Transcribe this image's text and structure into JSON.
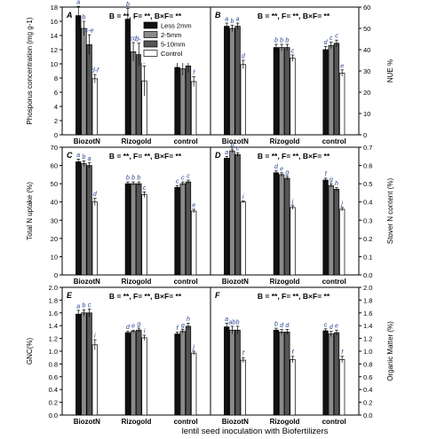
{
  "figure": {
    "shared_xlabel": "lentil seed inoculation with Biofertilizers",
    "groups": [
      "BiozotN",
      "Rizogold",
      "control"
    ],
    "legend": [
      "Less 2mm",
      "2-5mm",
      "5-10mm",
      "Control"
    ],
    "colors": {
      "series": [
        "#111111",
        "#8a8a8a",
        "#555555",
        "#ffffff"
      ],
      "axis": "#000000"
    }
  },
  "chart_data": [
    {
      "panel": "A",
      "type": "bar",
      "ylabel": "Phosporus concentration (mg g-1)",
      "categories": [
        "BiozotN",
        "Rizogold",
        "control"
      ],
      "ylim": [
        0,
        18
      ],
      "yticks": [
        0,
        2,
        4,
        6,
        8,
        10,
        12,
        14,
        16,
        18
      ],
      "series": [
        {
          "name": "Less 2mm",
          "values": [
            16.8,
            16.3,
            9.5
          ],
          "errors": [
            1.3,
            1.5,
            0.8
          ],
          "letters": [
            "a",
            "b",
            "b"
          ]
        },
        {
          "name": "2-5mm",
          "values": [
            15.0,
            11.7,
            9.3
          ],
          "errors": [
            1.0,
            1.3,
            0.9
          ],
          "letters": [
            "b",
            "cd",
            "c-f"
          ]
        },
        {
          "name": "5-10mm",
          "values": [
            12.7,
            11.3,
            9.7
          ],
          "errors": [
            1.4,
            1.6,
            0.9
          ],
          "letters": [
            "c-e",
            "d-f",
            "c-f"
          ]
        },
        {
          "name": "Control",
          "values": [
            7.9,
            7.6,
            7.5
          ],
          "errors": [
            0.6,
            2.1,
            0.7
          ],
          "letters": [
            "d-f",
            "f",
            "f"
          ]
        }
      ],
      "annotation": "B = **, F= **, B×F= **"
    },
    {
      "panel": "B",
      "type": "bar",
      "ylabel": "NUE %",
      "categories": [
        "BiozotN",
        "Rizogold",
        "control"
      ],
      "ylim": [
        0,
        60
      ],
      "yticks": [
        0,
        10,
        20,
        30,
        40,
        50,
        60
      ],
      "series": [
        {
          "name": "Less 2mm",
          "values": [
            51,
            41,
            40
          ],
          "errors": [
            1.5,
            1.5,
            1.5
          ],
          "letters": [
            "a",
            "b",
            "d"
          ]
        },
        {
          "name": "2-5mm",
          "values": [
            50,
            41,
            42
          ],
          "errors": [
            1.5,
            1.5,
            1.5
          ],
          "letters": [
            "b",
            "b",
            "c"
          ]
        },
        {
          "name": "5-10mm",
          "values": [
            51,
            41,
            43
          ],
          "errors": [
            1.5,
            1.5,
            1.5
          ],
          "letters": [
            "a",
            "b",
            "c"
          ]
        },
        {
          "name": "Control",
          "values": [
            33,
            36,
            29
          ],
          "errors": [
            2,
            1.5,
            1.5
          ],
          "letters": [
            "d",
            "c",
            "e"
          ]
        }
      ],
      "annotation": "B = **, F= **, B×F= **"
    },
    {
      "panel": "C",
      "type": "bar",
      "ylabel": "Total N uptake (%)",
      "categories": [
        "BiozotN",
        "Rizogold",
        "control"
      ],
      "ylim": [
        0,
        70
      ],
      "yticks": [
        0,
        10,
        20,
        30,
        40,
        50,
        60,
        70
      ],
      "series": [
        {
          "name": "Less 2mm",
          "values": [
            62,
            50,
            48
          ],
          "errors": [
            1.5,
            1,
            1
          ],
          "letters": [
            "a",
            "b",
            "c"
          ]
        },
        {
          "name": "2-5mm",
          "values": [
            61,
            50,
            50
          ],
          "errors": [
            1.5,
            1,
            1
          ],
          "letters": [
            "b",
            "b",
            "c"
          ]
        },
        {
          "name": "5-10mm",
          "values": [
            60,
            50,
            51
          ],
          "errors": [
            1.5,
            1,
            1
          ],
          "letters": [
            "a",
            "b",
            "c"
          ]
        },
        {
          "name": "Control",
          "values": [
            40,
            44,
            35
          ],
          "errors": [
            2,
            1.5,
            1
          ],
          "letters": [
            "d",
            "c",
            "e"
          ]
        }
      ],
      "annotation": "B = **, F= **, B×F= **"
    },
    {
      "panel": "D",
      "type": "bar",
      "ylabel": "Stover N content (%)",
      "categories": [
        "BiozotN",
        "Rizogold",
        "control"
      ],
      "ylim": [
        0,
        0.7
      ],
      "yticks": [
        0,
        0.1,
        0.2,
        0.3,
        0.4,
        0.5,
        0.6,
        0.7
      ],
      "series": [
        {
          "name": "Less 2mm",
          "values": [
            0.64,
            0.56,
            0.52
          ],
          "errors": [
            0.01,
            0.01,
            0.01
          ],
          "letters": [
            "a",
            "d",
            "f"
          ]
        },
        {
          "name": "2-5mm",
          "values": [
            0.68,
            0.55,
            0.49
          ],
          "errors": [
            0.01,
            0.01,
            0.01
          ],
          "letters": [
            "b",
            "e",
            "g"
          ]
        },
        {
          "name": "5-10mm",
          "values": [
            0.66,
            0.53,
            0.47
          ],
          "errors": [
            0.01,
            0.01,
            0.01
          ],
          "letters": [
            "c",
            "g",
            "h"
          ]
        },
        {
          "name": "Control",
          "values": [
            0.4,
            0.37,
            0.36
          ],
          "errors": [
            0.005,
            0.01,
            0.01
          ],
          "letters": [
            "i",
            "j",
            "j"
          ]
        }
      ],
      "annotation": "B = **, F= **, B×F= **"
    },
    {
      "panel": "E",
      "type": "bar",
      "ylabel": "GNC(%)",
      "categories": [
        "BiozotN",
        "Rizogold",
        "control"
      ],
      "ylim": [
        0,
        2.0
      ],
      "yticks": [
        0,
        0.2,
        0.4,
        0.6,
        0.8,
        1.0,
        1.2,
        1.4,
        1.6,
        1.8,
        2.0
      ],
      "series": [
        {
          "name": "Less 2mm",
          "values": [
            1.58,
            1.29,
            1.27
          ],
          "errors": [
            0.06,
            0.02,
            0.03
          ],
          "letters": [
            "a",
            "d",
            "f"
          ]
        },
        {
          "name": "2-5mm",
          "values": [
            1.6,
            1.31,
            1.31
          ],
          "errors": [
            0.05,
            0.02,
            0.03
          ],
          "letters": [
            "b",
            "e",
            "g"
          ]
        },
        {
          "name": "5-10mm",
          "values": [
            1.6,
            1.33,
            1.39
          ],
          "errors": [
            0.06,
            0.03,
            0.05
          ],
          "letters": [
            "c",
            "g",
            "h"
          ]
        },
        {
          "name": "Control",
          "values": [
            1.1,
            1.21,
            0.97
          ],
          "errors": [
            0.08,
            0.04,
            0.03
          ],
          "letters": [
            "i",
            "i",
            "j"
          ]
        }
      ],
      "annotation": "B = **, F= **, B×F= **"
    },
    {
      "panel": "F",
      "type": "bar",
      "ylabel": "Organic Matter (%)",
      "categories": [
        "BiozotN",
        "Rizogold",
        "control"
      ],
      "ylim": [
        0,
        2.0
      ],
      "yticks": [
        0,
        0.2,
        0.4,
        0.6,
        0.8,
        1.0,
        1.2,
        1.4,
        1.6,
        1.8,
        2.0
      ],
      "series": [
        {
          "name": "Less 2mm",
          "values": [
            1.38,
            1.33,
            1.32
          ],
          "errors": [
            0.06,
            0.03,
            0.03
          ],
          "letters": [
            "a",
            "b",
            "c"
          ]
        },
        {
          "name": "2-5mm",
          "values": [
            1.33,
            1.3,
            1.27
          ],
          "errors": [
            0.06,
            0.04,
            0.04
          ],
          "letters": [
            "ab",
            "d",
            "d"
          ]
        },
        {
          "name": "5-10mm",
          "values": [
            1.33,
            1.3,
            1.29
          ],
          "errors": [
            0.06,
            0.04,
            0.04
          ],
          "letters": [
            "b",
            "d",
            "e"
          ]
        },
        {
          "name": "Control",
          "values": [
            0.86,
            0.87,
            0.87
          ],
          "errors": [
            0.04,
            0.05,
            0.05
          ],
          "letters": [
            "f",
            "f",
            "f"
          ]
        }
      ],
      "annotation": "B = **, F= **, B×F= **"
    }
  ]
}
